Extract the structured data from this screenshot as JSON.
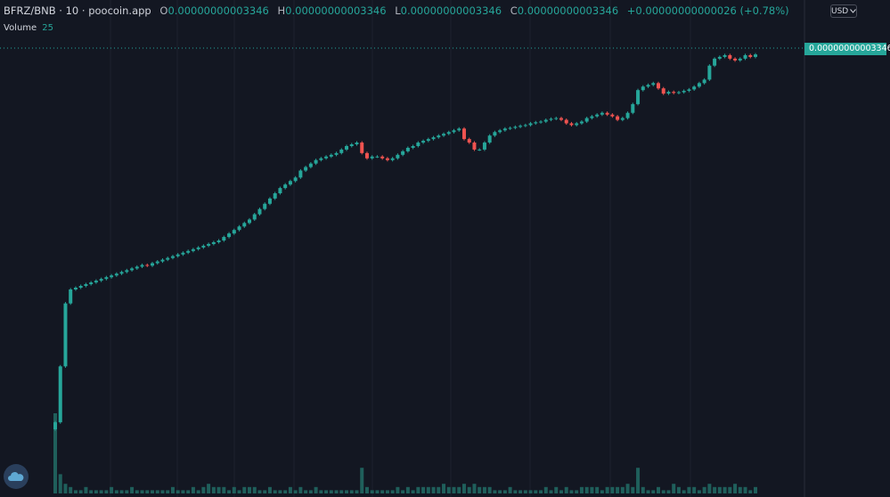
{
  "legend": {
    "symbol": "BFRZ/BNB · 10 · poocoin.app",
    "open_label": "O",
    "open_value": "0.00000000003346",
    "high_label": "H",
    "high_value": "0.00000000003346",
    "low_label": "L",
    "low_value": "0.00000000003346",
    "close_label": "C",
    "close_value": "0.00000000003346",
    "change": "+0.00000000000026 (+0.78%)"
  },
  "volume_legend": {
    "label": "Volume",
    "value": "25"
  },
  "currency_selector": {
    "label": "USD"
  },
  "last_price_tag": "0.00000000003346",
  "colors": {
    "background": "#131722",
    "up": "#26a69a",
    "down": "#ef5350",
    "grid": "#1e222d",
    "volume": "#1f5f5b"
  },
  "chart_data": {
    "type": "candlestick",
    "series_name": "BFRZ/BNB",
    "interval": "10",
    "last_close": 3.346e-11,
    "grid": true,
    "close_relative": [
      0.02,
      0.18,
      0.36,
      0.4,
      0.405,
      0.41,
      0.415,
      0.42,
      0.425,
      0.43,
      0.435,
      0.44,
      0.445,
      0.45,
      0.455,
      0.46,
      0.465,
      0.47,
      0.468,
      0.475,
      0.48,
      0.485,
      0.49,
      0.495,
      0.5,
      0.505,
      0.51,
      0.515,
      0.52,
      0.525,
      0.53,
      0.535,
      0.54,
      0.55,
      0.56,
      0.57,
      0.58,
      0.59,
      0.6,
      0.615,
      0.63,
      0.645,
      0.66,
      0.675,
      0.69,
      0.7,
      0.71,
      0.72,
      0.74,
      0.75,
      0.76,
      0.77,
      0.775,
      0.78,
      0.785,
      0.79,
      0.8,
      0.81,
      0.815,
      0.82,
      0.79,
      0.775,
      0.78,
      0.78,
      0.775,
      0.77,
      0.775,
      0.785,
      0.795,
      0.805,
      0.81,
      0.82,
      0.825,
      0.83,
      0.835,
      0.84,
      0.845,
      0.85,
      0.855,
      0.86,
      0.83,
      0.82,
      0.8,
      0.8,
      0.82,
      0.84,
      0.85,
      0.855,
      0.86,
      0.862,
      0.865,
      0.868,
      0.87,
      0.875,
      0.878,
      0.88,
      0.885,
      0.888,
      0.89,
      0.885,
      0.875,
      0.87,
      0.875,
      0.88,
      0.89,
      0.895,
      0.9,
      0.905,
      0.9,
      0.895,
      0.885,
      0.89,
      0.905,
      0.93,
      0.97,
      0.98,
      0.985,
      0.99,
      0.975,
      0.96,
      0.965,
      0.962,
      0.964,
      0.968,
      0.972,
      0.98,
      0.99,
      1.0,
      1.04,
      1.06,
      1.065,
      1.07,
      1.06,
      1.055,
      1.06,
      1.07,
      1.065,
      1.072
    ],
    "volume_relative": [
      0.25,
      0.06,
      0.03,
      0.02,
      0.01,
      0.01,
      0.02,
      0.01,
      0.01,
      0.01,
      0.01,
      0.02,
      0.01,
      0.01,
      0.01,
      0.02,
      0.01,
      0.01,
      0.01,
      0.01,
      0.01,
      0.01,
      0.01,
      0.02,
      0.01,
      0.01,
      0.01,
      0.02,
      0.01,
      0.02,
      0.03,
      0.02,
      0.02,
      0.02,
      0.01,
      0.02,
      0.01,
      0.02,
      0.02,
      0.02,
      0.01,
      0.01,
      0.02,
      0.01,
      0.01,
      0.01,
      0.02,
      0.01,
      0.02,
      0.01,
      0.01,
      0.02,
      0.01,
      0.01,
      0.01,
      0.01,
      0.01,
      0.01,
      0.01,
      0.01,
      0.08,
      0.02,
      0.01,
      0.01,
      0.01,
      0.01,
      0.01,
      0.02,
      0.01,
      0.02,
      0.01,
      0.02,
      0.02,
      0.02,
      0.02,
      0.02,
      0.03,
      0.02,
      0.02,
      0.02,
      0.03,
      0.02,
      0.03,
      0.02,
      0.02,
      0.02,
      0.01,
      0.01,
      0.01,
      0.02,
      0.01,
      0.01,
      0.01,
      0.01,
      0.01,
      0.01,
      0.02,
      0.01,
      0.02,
      0.01,
      0.02,
      0.01,
      0.01,
      0.02,
      0.02,
      0.02,
      0.02,
      0.01,
      0.02,
      0.02,
      0.02,
      0.02,
      0.03,
      0.02,
      0.08,
      0.02,
      0.01,
      0.01,
      0.02,
      0.01,
      0.01,
      0.03,
      0.02,
      0.01,
      0.02,
      0.02,
      0.01,
      0.02,
      0.03,
      0.02,
      0.02,
      0.02,
      0.02,
      0.03,
      0.02,
      0.02,
      0.01,
      0.02
    ]
  }
}
